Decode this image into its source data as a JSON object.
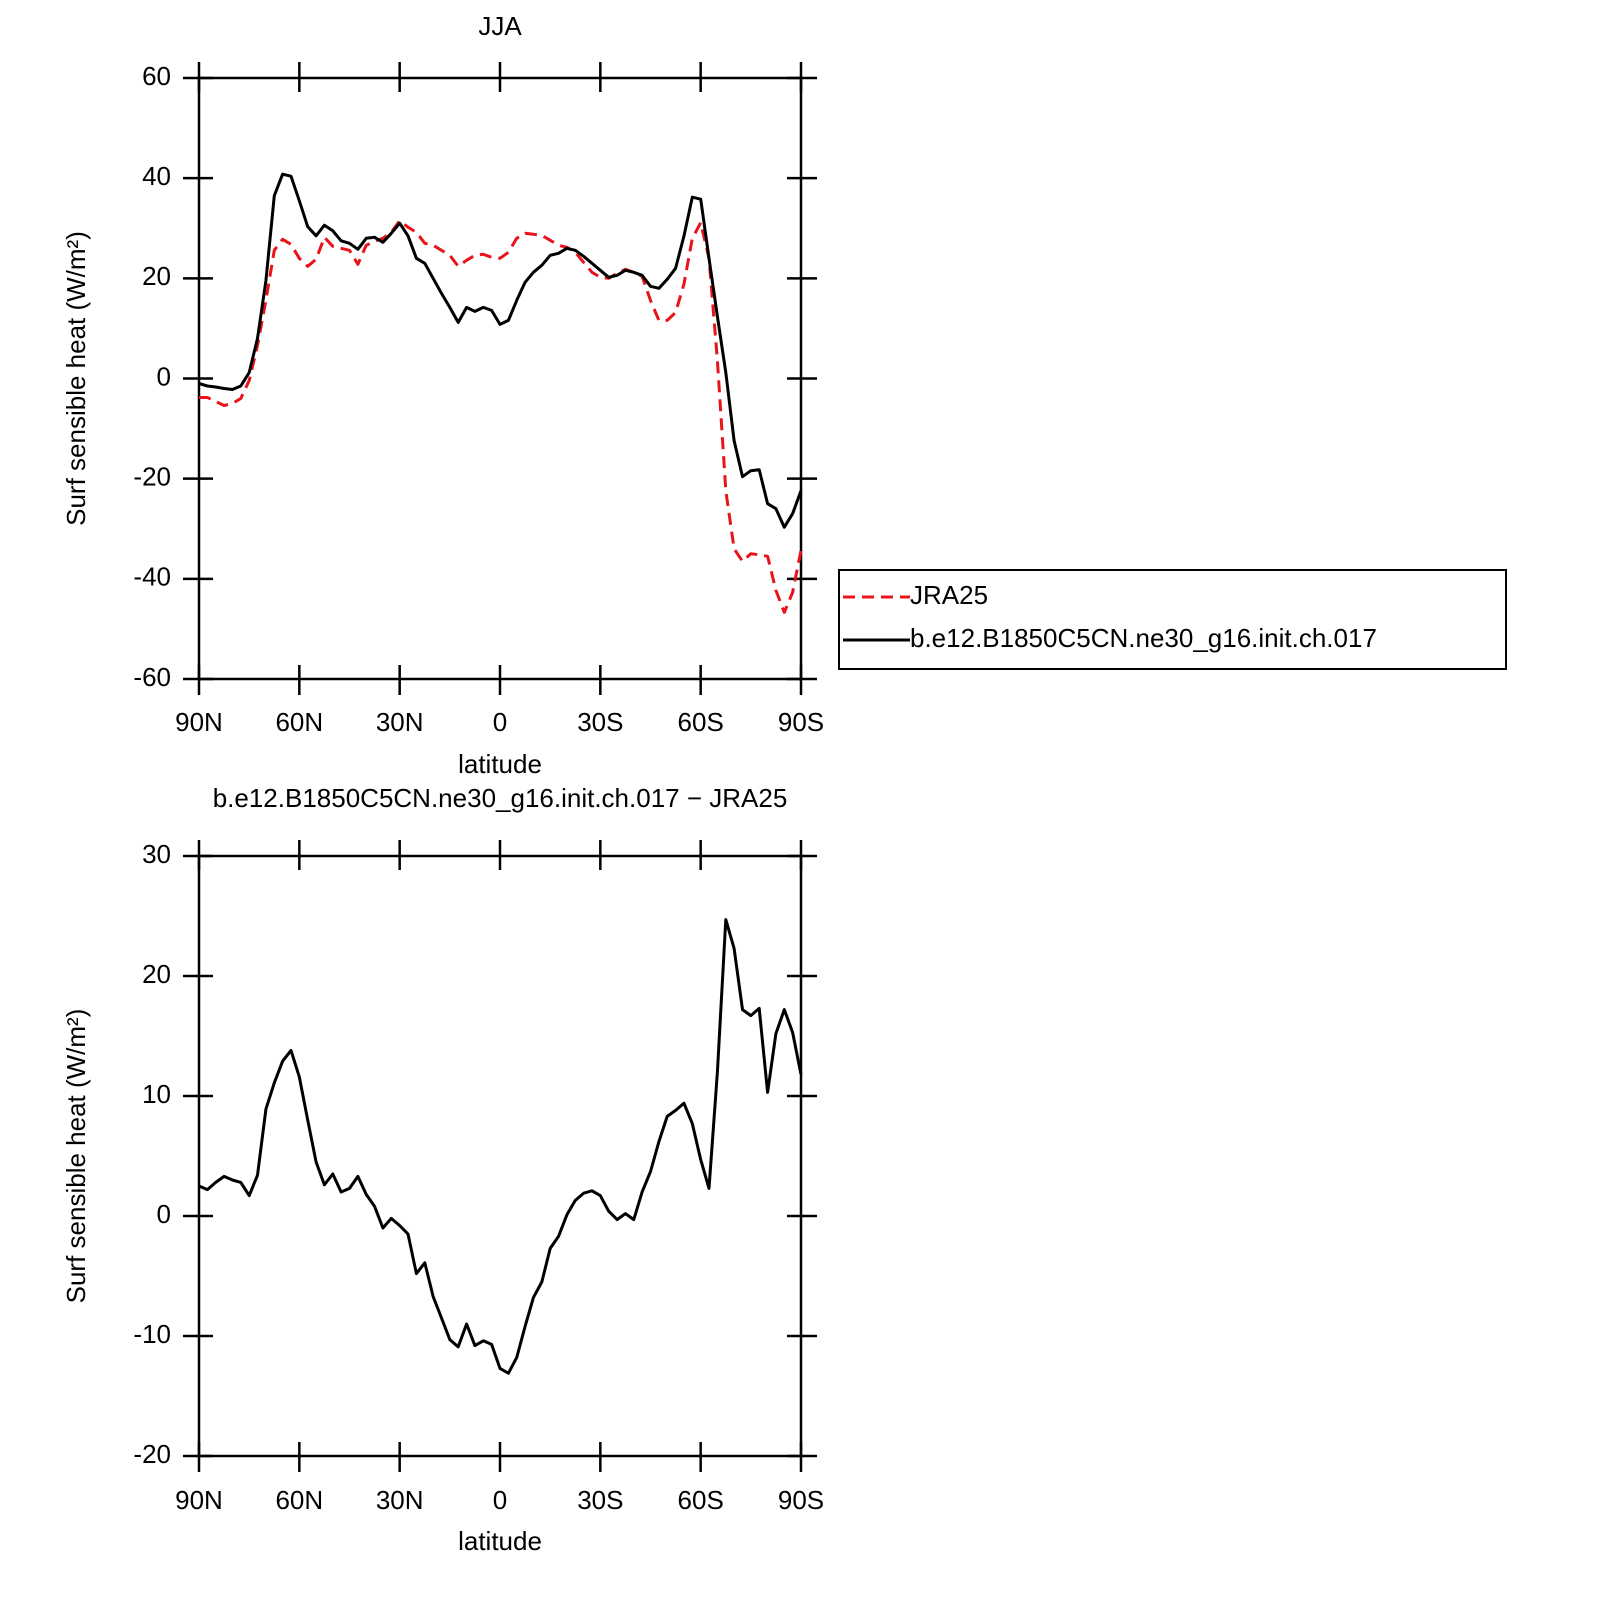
{
  "chart_data": [
    {
      "type": "line",
      "title": "JJA",
      "xlabel": "latitude",
      "ylabel": "Surf sensible heat (W/m²)",
      "x": [
        90,
        87.5,
        85,
        82.5,
        80,
        77.5,
        75,
        72.5,
        70,
        67.5,
        65,
        62.5,
        60,
        57.5,
        55,
        52.5,
        50,
        47.5,
        45,
        42.5,
        40,
        37.5,
        35,
        32.5,
        30,
        27.5,
        25,
        22.5,
        20,
        17.5,
        15,
        12.5,
        10,
        7.5,
        5,
        2.5,
        0,
        -2.5,
        -5,
        -7.5,
        -10,
        -12.5,
        -15,
        -17.5,
        -20,
        -22.5,
        -25,
        -27.5,
        -30,
        -32.5,
        -35,
        -37.5,
        -40,
        -42.5,
        -45,
        -47.5,
        -50,
        -52.5,
        -55,
        -57.5,
        -60,
        -62.5,
        -65,
        -67.5,
        -70,
        -72.5,
        -75,
        -77.5,
        -80,
        -82.5,
        -85,
        -87.5,
        -90
      ],
      "series": [
        {
          "name": "JRA25",
          "color": "#e8141a",
          "style": "dashed",
          "values": [
            -3.8,
            -3.8,
            -4.6,
            -5.4,
            -5,
            -4,
            -0.4,
            6.6,
            15.6,
            25.6,
            27.8,
            26.8,
            24,
            22.4,
            23.8,
            28.2,
            26.4,
            26,
            25.6,
            22.8,
            26.6,
            27.4,
            28,
            29.2,
            31.5,
            30.2,
            29.2,
            27,
            26.6,
            25.6,
            24.6,
            22.4,
            23.6,
            24.6,
            24.8,
            24.2,
            24,
            25.2,
            28,
            29,
            28.8,
            28.6,
            27.6,
            26.6,
            26.2,
            25.2,
            23.2,
            21.2,
            20.2,
            20,
            21,
            21.8,
            21.2,
            20.4,
            15.6,
            11.6,
            11.6,
            13.2,
            18.8,
            28,
            31.1,
            24,
            3.6,
            -22.4,
            -34,
            -36.5,
            -35,
            -35.2,
            -35.5,
            -42.3,
            -46.7,
            -42.7,
            -34.3
          ]
        },
        {
          "name": "b.e12.B1850C5CN.ne30_g16.init.ch.017",
          "color": "#000000",
          "style": "solid",
          "values": [
            -1,
            -1.5,
            -1.7,
            -2,
            -2.2,
            -1.5,
            1.2,
            8,
            19.5,
            36.5,
            40.8,
            40.4,
            35.5,
            30.3,
            28.5,
            30.6,
            29.5,
            27.5,
            27,
            25.8,
            28,
            28.2,
            27.2,
            29,
            31,
            28.5,
            24,
            23,
            20,
            17,
            14.2,
            11.2,
            14.2,
            13.4,
            14.2,
            13.6,
            10.8,
            11.6,
            15.6,
            19.2,
            21.2,
            22.6,
            24.6,
            25,
            26,
            25.6,
            24.4,
            23,
            21.6,
            20.2,
            20.6,
            21.6,
            21.2,
            20.6,
            18.4,
            18,
            19.8,
            22,
            28.4,
            36.2,
            35.8,
            24,
            12.4,
            1.2,
            -12.4,
            -19.6,
            -18.4,
            -18.2,
            -25,
            -26,
            -29.7,
            -27,
            -22.4
          ]
        }
      ],
      "xlim": [
        90,
        -90
      ],
      "xticks": [
        {
          "value": 90,
          "label": "90N"
        },
        {
          "value": 60,
          "label": "60N"
        },
        {
          "value": 30,
          "label": "30N"
        },
        0,
        {
          "value": -30,
          "label": "30S"
        },
        {
          "value": -60,
          "label": "60S"
        },
        {
          "value": -90,
          "label": "90S"
        }
      ],
      "ylim": [
        -60,
        60
      ],
      "yticks": [
        -60,
        -40,
        -20,
        0,
        20,
        40,
        60
      ],
      "legend": "outside-right"
    },
    {
      "type": "line",
      "title": "b.e12.B1850C5CN.ne30_g16.init.ch.017 − JRA25",
      "xlabel": "latitude",
      "ylabel": "Surf sensible heat (W/m²)",
      "x": [
        90,
        87.5,
        85,
        82.5,
        80,
        77.5,
        75,
        72.5,
        70,
        67.5,
        65,
        62.5,
        60,
        57.5,
        55,
        52.5,
        50,
        47.5,
        45,
        42.5,
        40,
        37.5,
        35,
        32.5,
        30,
        27.5,
        25,
        22.5,
        20,
        17.5,
        15,
        12.5,
        10,
        7.5,
        5,
        2.5,
        0,
        -2.5,
        -5,
        -7.5,
        -10,
        -12.5,
        -15,
        -17.5,
        -20,
        -22.5,
        -25,
        -27.5,
        -30,
        -32.5,
        -35,
        -37.5,
        -40,
        -42.5,
        -45,
        -47.5,
        -50,
        -52.5,
        -55,
        -57.5,
        -60,
        -62.5,
        -65,
        -67.5,
        -70,
        -72.5,
        -75,
        -77.5,
        -80,
        -82.5,
        -85,
        -87.5,
        -90
      ],
      "series": [
        {
          "color": "#000000",
          "style": "solid",
          "values": [
            2.5,
            2.2,
            2.8,
            3.3,
            3,
            2.8,
            1.7,
            3.4,
            8.9,
            11.1,
            12.9,
            13.8,
            11.6,
            8,
            4.5,
            2.6,
            3.5,
            2,
            2.3,
            3.3,
            1.8,
            0.8,
            -1,
            -0.2,
            -0.8,
            -1.5,
            -4.8,
            -3.9,
            -6.7,
            -8.5,
            -10.3,
            -10.9,
            -9,
            -10.8,
            -10.4,
            -10.7,
            -12.7,
            -13.1,
            -11.8,
            -9.2,
            -6.8,
            -5.5,
            -2.7,
            -1.7,
            0.1,
            1.3,
            1.9,
            2.1,
            1.7,
            0.4,
            -0.3,
            0.2,
            -0.3,
            2,
            3.7,
            6.2,
            8.3,
            8.8,
            9.4,
            7.7,
            4.7,
            2.3,
            12,
            24.7,
            22.3,
            17.2,
            16.7,
            17.3,
            10.3,
            15.2,
            17.2,
            15.3,
            11.8
          ]
        }
      ],
      "xlim": [
        90,
        -90
      ],
      "xticks": [
        {
          "value": 90,
          "label": "90N"
        },
        {
          "value": 60,
          "label": "60N"
        },
        {
          "value": 30,
          "label": "30N"
        },
        0,
        {
          "value": -30,
          "label": "30S"
        },
        {
          "value": -60,
          "label": "60S"
        },
        {
          "value": -90,
          "label": "90S"
        }
      ],
      "ylim": [
        -20,
        30
      ],
      "yticks": [
        -20,
        -10,
        0,
        10,
        20,
        30
      ]
    }
  ]
}
